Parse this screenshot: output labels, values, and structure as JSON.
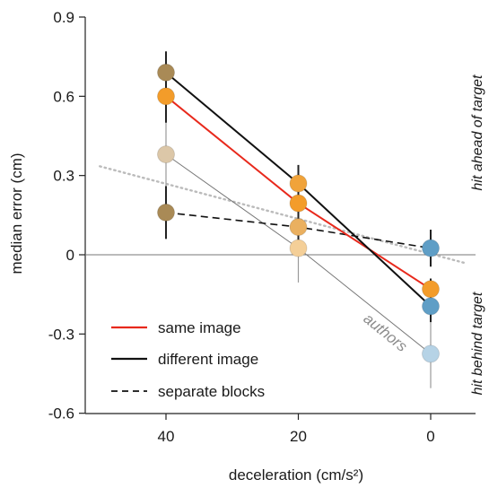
{
  "chart_data": {
    "type": "line",
    "xlabel": "deceleration (cm/s²)",
    "ylabel": "median error (cm)",
    "x_ticks": [
      40,
      20,
      0
    ],
    "y_ticks": [
      0.9,
      0.6,
      0.3,
      0,
      -0.3,
      -0.6
    ],
    "y_tick_labels": [
      "0.9",
      "0.6",
      "0.3",
      "0",
      "-0.3",
      "-0.6"
    ],
    "x_tick_labels": [
      "40",
      "20",
      "0"
    ],
    "xlim": [
      50,
      -5
    ],
    "ylim": [
      -0.6,
      0.9
    ],
    "x_reversed": true,
    "grid": false,
    "legend_position": "bottom-left",
    "legend": [
      {
        "label": "same image",
        "color": "#e8291c",
        "style": "solid"
      },
      {
        "label": "different image",
        "color": "#111111",
        "style": "solid"
      },
      {
        "label": "separate blocks",
        "color": "#111111",
        "style": "dashed"
      }
    ],
    "annotations": {
      "above": "hit ahead of target",
      "below": "hit behind target",
      "authors": "authors"
    },
    "series": [
      {
        "name": "same image",
        "x": [
          40,
          20,
          0
        ],
        "y": [
          0.6,
          0.195,
          -0.13
        ],
        "err": [
          0.1,
          0.06,
          0.04
        ],
        "line_color": "#e8291c",
        "marker_colors": [
          "#f39c2a",
          "#f39c2a",
          "#f39c2a"
        ],
        "line_width": 2,
        "dashed": false
      },
      {
        "name": "different image",
        "x": [
          40,
          20,
          0
        ],
        "y": [
          0.69,
          0.27,
          -0.195
        ],
        "err": [
          0.08,
          0.07,
          0.06
        ],
        "line_color": "#111111",
        "marker_colors": [
          "#a98a56",
          "#f0a33a",
          "#5f9ec6"
        ],
        "line_width": 2,
        "dashed": false
      },
      {
        "name": "separate blocks",
        "x": [
          40,
          20,
          0
        ],
        "y": [
          0.16,
          0.105,
          0.025
        ],
        "err": [
          0.1,
          0.05,
          0.07
        ],
        "line_color": "#111111",
        "marker_colors": [
          "#a98a56",
          "#eab060",
          "#5f9ec6"
        ],
        "line_width": 1.6,
        "dashed": true
      },
      {
        "name": "authors",
        "x": [
          40,
          20,
          0
        ],
        "y": [
          0.38,
          0.025,
          -0.375
        ],
        "err": [
          0.12,
          0.13,
          0.13
        ],
        "line_color": "#777777",
        "marker_colors": [
          "#dcc7a8",
          "#f4cf98",
          "#b6d3e6"
        ],
        "line_width": 1,
        "dashed": false
      }
    ],
    "reference_line": {
      "x": [
        50,
        -5
      ],
      "y": [
        0.335,
        -0.03
      ],
      "color": "#bbbbbb",
      "style": "dotted"
    }
  }
}
